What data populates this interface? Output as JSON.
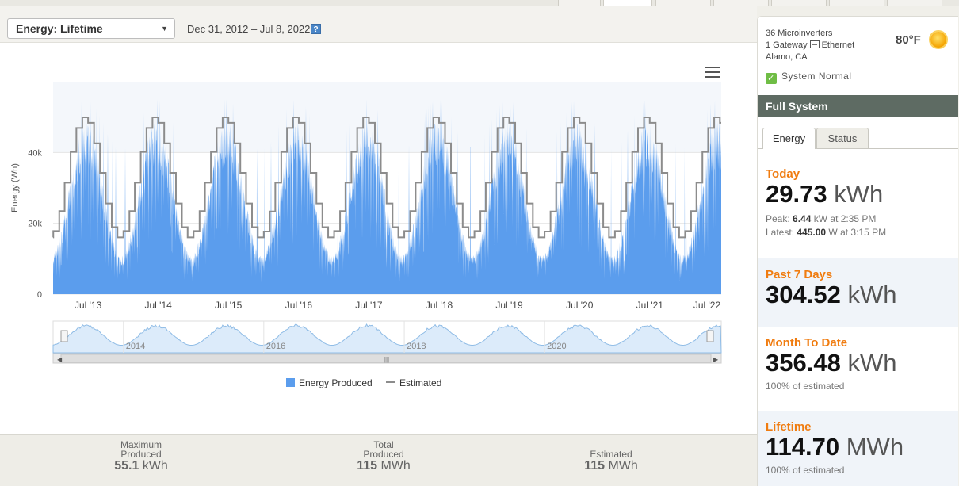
{
  "toolbar": {
    "view_select": "Energy: Lifetime",
    "date_range": "Dec 31, 2012 – Jul 8, 2022",
    "help_label": "?"
  },
  "chart_data": {
    "type": "area",
    "ylabel": "Energy (Wh)",
    "y_ticks": [
      "0",
      "20k",
      "40k"
    ],
    "ylim": [
      0,
      60000
    ],
    "x_ticks": [
      "Jul '13",
      "Jul '14",
      "Jul '15",
      "Jul '16",
      "Jul '17",
      "Jul '18",
      "Jul '19",
      "Jul '20",
      "Jul '21",
      "Jul '22"
    ],
    "x_range": [
      "2012-12-31",
      "2022-07-08"
    ],
    "seasonal_peak_month": "Jun",
    "series": [
      {
        "name": "Energy Produced",
        "color": "#5b9ded",
        "style": "daily-area",
        "summer_peak": 55100,
        "winter_min": 5000
      },
      {
        "name": "Estimated",
        "color": "#8c8c8c",
        "style": "monthly-step",
        "summer_peak": 50000,
        "winter_min": 16000
      }
    ],
    "grid": true,
    "legend_position": "bottom-center",
    "navigator": {
      "year_labels": [
        "2014",
        "2016",
        "2018",
        "2020"
      ],
      "scroll_grip": "|||"
    }
  },
  "stats": {
    "max": {
      "label1": "Maximum",
      "label2": "Produced",
      "value": "55.1",
      "unit": "kWh"
    },
    "total": {
      "label1": "Total",
      "label2": "Produced",
      "value": "115",
      "unit": "MWh"
    },
    "estimated": {
      "label1": "Estimated",
      "value": "115",
      "unit": "MWh"
    }
  },
  "sidebar": {
    "microinverters": "36 Microinverters",
    "gateway_prefix": "1 Gateway",
    "gateway_conn": "Ethernet",
    "location": "Alamo, CA",
    "temperature": "80°F",
    "system_status": "System Normal",
    "system_title": "Full System",
    "tabs": [
      "Energy",
      "Status"
    ],
    "today": {
      "label": "Today",
      "value": "29.73",
      "unit": "kWh",
      "peak_prefix": "Peak:",
      "peak_value": "6.44",
      "peak_suffix": "kW at 2:35 PM",
      "latest_prefix": "Latest:",
      "latest_value": "445.00",
      "latest_suffix": "W at 3:15 PM"
    },
    "past7": {
      "label": "Past 7 Days",
      "value": "304.52",
      "unit": "kWh"
    },
    "mtd": {
      "label": "Month To Date",
      "value": "356.48",
      "unit": "kWh",
      "note": "100% of estimated"
    },
    "lifetime": {
      "label": "Lifetime",
      "value": "114.70",
      "unit": "MWh",
      "note": "100% of estimated"
    }
  },
  "colors": {
    "accent": "#f07c10",
    "header_bar": "#5e6b63",
    "produced": "#5b9ded",
    "estimated": "#8c8c8c"
  }
}
